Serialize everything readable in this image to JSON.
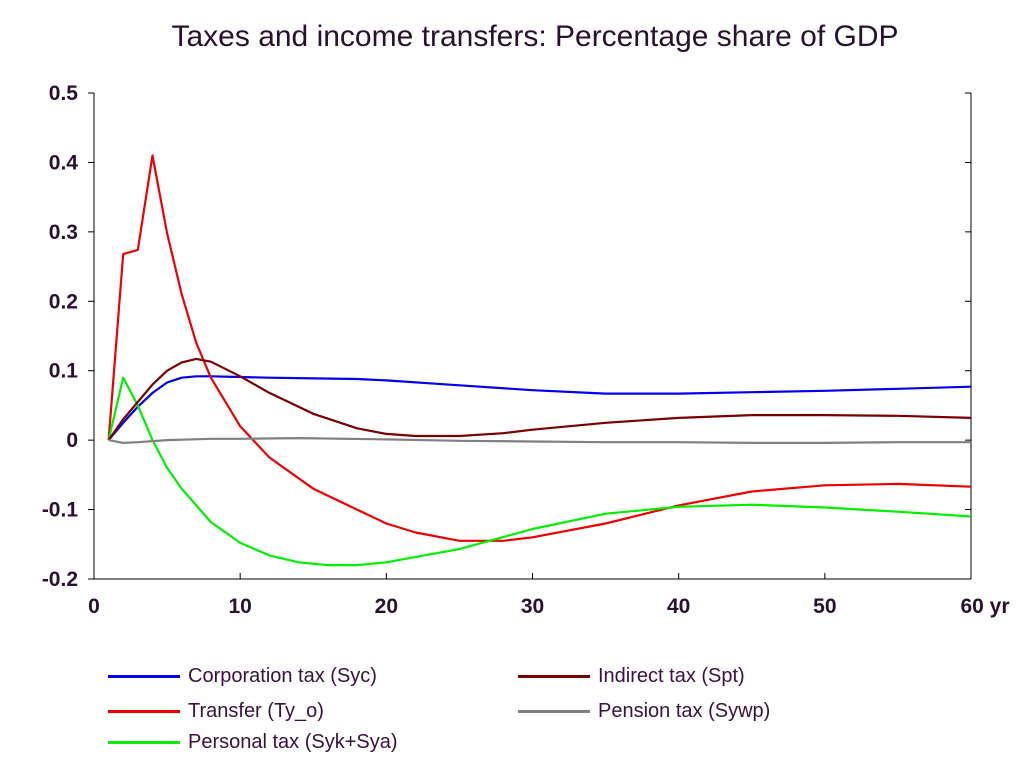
{
  "chart_data": {
    "type": "line",
    "title": "Taxes and income transfers: Percentage share of GDP",
    "xlabel": "",
    "ylabel": "",
    "xlim": [
      0,
      60
    ],
    "ylim": [
      -0.2,
      0.5
    ],
    "x_ticks": [
      0,
      10,
      20,
      30,
      40,
      50,
      60
    ],
    "x_tick_labels": [
      "0",
      "10",
      "20",
      "30",
      "40",
      "50",
      "60 yr"
    ],
    "y_ticks": [
      -0.2,
      -0.1,
      0,
      0.1,
      0.2,
      0.3,
      0.4,
      0.5
    ],
    "y_tick_labels": [
      "-0.2",
      "-0.1",
      "0",
      "0.1",
      "0.2",
      "0.3",
      "0.4",
      "0.5"
    ],
    "grid": false,
    "legend_position": "bottom",
    "series": [
      {
        "name": "Corporation tax (Syc)",
        "color": "#0000ee",
        "x": [
          1,
          2,
          3,
          4,
          5,
          6,
          7,
          8,
          10,
          12,
          15,
          18,
          20,
          25,
          30,
          35,
          40,
          45,
          50,
          55,
          60
        ],
        "y": [
          0,
          0.025,
          0.048,
          0.068,
          0.083,
          0.09,
          0.092,
          0.092,
          0.091,
          0.09,
          0.089,
          0.088,
          0.086,
          0.079,
          0.072,
          0.067,
          0.067,
          0.069,
          0.071,
          0.074,
          0.077
        ]
      },
      {
        "name": "Transfer (Ty_o)",
        "color": "#ee0000",
        "x": [
          1,
          2,
          3,
          4,
          5,
          6,
          7,
          8,
          10,
          12,
          15,
          18,
          20,
          22,
          25,
          28,
          30,
          35,
          40,
          45,
          50,
          55,
          60
        ],
        "y": [
          0,
          0.268,
          0.274,
          0.41,
          0.298,
          0.21,
          0.14,
          0.09,
          0.02,
          -0.025,
          -0.07,
          -0.1,
          -0.12,
          -0.133,
          -0.145,
          -0.145,
          -0.14,
          -0.12,
          -0.094,
          -0.074,
          -0.065,
          -0.063,
          -0.067
        ]
      },
      {
        "name": "Personal tax (Syk+Sya)",
        "color": "#00ee00",
        "x": [
          1,
          2,
          3,
          4,
          5,
          6,
          8,
          10,
          12,
          14,
          16,
          18,
          20,
          25,
          30,
          35,
          40,
          45,
          50,
          55,
          60
        ],
        "y": [
          0,
          0.09,
          0.05,
          0.0,
          -0.04,
          -0.07,
          -0.118,
          -0.148,
          -0.166,
          -0.176,
          -0.18,
          -0.18,
          -0.176,
          -0.157,
          -0.128,
          -0.106,
          -0.096,
          -0.093,
          -0.097,
          -0.103,
          -0.11
        ]
      },
      {
        "name": "Indirect tax (Spt)",
        "color": "#7a0000",
        "x": [
          1,
          2,
          3,
          4,
          5,
          6,
          7,
          8,
          10,
          12,
          15,
          18,
          20,
          22,
          25,
          28,
          30,
          35,
          40,
          45,
          50,
          55,
          60
        ],
        "y": [
          0,
          0.03,
          0.055,
          0.08,
          0.1,
          0.112,
          0.117,
          0.113,
          0.092,
          0.068,
          0.038,
          0.017,
          0.009,
          0.006,
          0.006,
          0.01,
          0.015,
          0.025,
          0.032,
          0.036,
          0.036,
          0.035,
          0.032
        ]
      },
      {
        "name": "Pension tax (Sywp)",
        "color": "#808080",
        "x": [
          1,
          2,
          3,
          5,
          8,
          10,
          14,
          20,
          25,
          30,
          35,
          40,
          45,
          50,
          55,
          60
        ],
        "y": [
          0,
          -0.004,
          -0.003,
          0.0,
          0.002,
          0.002,
          0.003,
          0.001,
          -0.001,
          -0.002,
          -0.003,
          -0.003,
          -0.004,
          -0.004,
          -0.003,
          -0.003
        ]
      }
    ]
  },
  "legend": {
    "items": [
      {
        "label": "Corporation tax (Syc)"
      },
      {
        "label": "Transfer (Ty_o)"
      },
      {
        "label": "Personal tax (Syk+Sya)"
      },
      {
        "label": "Indirect tax (Spt)"
      },
      {
        "label": "Pension tax (Sywp)"
      }
    ]
  }
}
